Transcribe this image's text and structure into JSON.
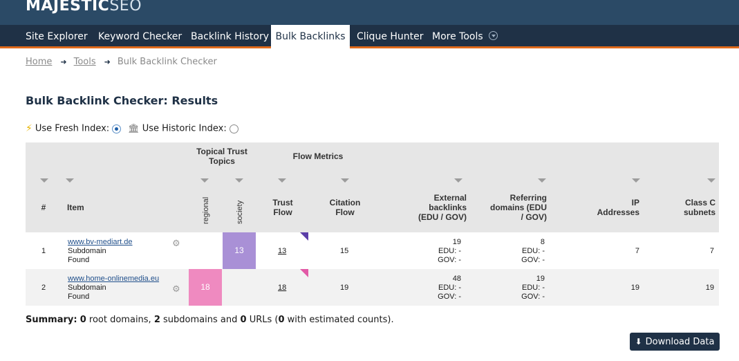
{
  "brand": {
    "main": "MAJESTIC",
    "suffix": "SEO"
  },
  "nav": {
    "items": [
      {
        "label": "Site Explorer"
      },
      {
        "label": "Keyword Checker"
      },
      {
        "label": "Backlink History"
      },
      {
        "label": "Bulk Backlinks",
        "active": true
      },
      {
        "label": "Clique Hunter"
      },
      {
        "label": "More Tools"
      }
    ]
  },
  "breadcrumb": {
    "home": "Home",
    "tools": "Tools",
    "current": "Bulk Backlink Checker"
  },
  "page": {
    "title": "Bulk Backlink Checker: Results"
  },
  "index_options": {
    "fresh_label": "Use Fresh Index:",
    "historic_label": "Use Historic Index:",
    "selected": "fresh"
  },
  "table": {
    "group_headers": {
      "topical": "Topical Trust Topics",
      "flow": "Flow Metrics"
    },
    "headers": {
      "num": "#",
      "item": "Item",
      "topic1": "regional",
      "topic2": "society",
      "trust_flow": "Trust Flow",
      "citation_flow": "Citation Flow",
      "ext_backlinks": "External backlinks (EDU / GOV)",
      "ref_domains": "Referring domains (EDU / GOV)",
      "ip": "IP Addresses",
      "classc": "Class C subnets"
    },
    "rows": [
      {
        "num": "1",
        "url": "www.bv-mediart.de",
        "type": "Subdomain",
        "status": "Found",
        "regional": "",
        "society": "13",
        "trust_flow": "13",
        "citation_flow": "15",
        "ext_backlinks": "19",
        "ext_edu": "EDU: -",
        "ext_gov": "GOV: -",
        "ref_domains": "8",
        "ref_edu": "EDU: -",
        "ref_gov": "GOV: -",
        "ip": "7",
        "classc": "7"
      },
      {
        "num": "2",
        "url": "www.home-onlinemedia.eu",
        "type": "Subdomain",
        "status": "Found",
        "regional": "18",
        "society": "",
        "trust_flow": "18",
        "citation_flow": "19",
        "ext_backlinks": "48",
        "ext_edu": "EDU: -",
        "ext_gov": "GOV: -",
        "ref_domains": "19",
        "ref_edu": "EDU: -",
        "ref_gov": "GOV: -",
        "ip": "19",
        "classc": "19"
      }
    ]
  },
  "summary": {
    "label": "Summary:",
    "root_count": "0",
    "root_text": "root domains,",
    "sub_count": "2",
    "sub_text": "subdomains and",
    "url_count": "0",
    "url_text": "URLs (",
    "est_count": "0",
    "est_text": "with estimated counts)."
  },
  "download": {
    "label": "Download Data"
  },
  "colors": {
    "nav_bg": "#1f3146",
    "accent": "#e06a1b",
    "society": "#a990d6",
    "regional": "#ef8ac0"
  }
}
